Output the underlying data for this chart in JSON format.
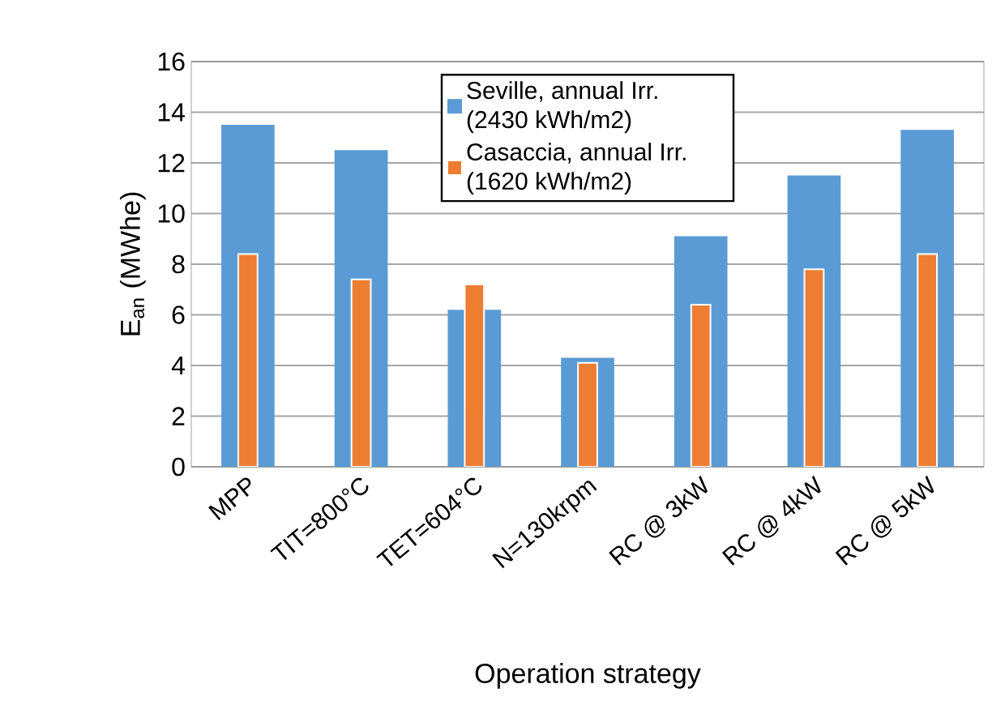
{
  "chart_data": {
    "type": "bar",
    "xlabel": "Operation strategy",
    "ylabel": "E$_{an}$ (MWhe)",
    "categories": [
      "MPP",
      "TIT=800°C",
      "TET=604°C",
      "N=130krpm",
      "RC @ 3kW",
      "RC @ 4kW",
      "RC @ 5kW"
    ],
    "series": [
      {
        "name": "Seville, annual Irr. (2430 kWh/m2)",
        "color": "#5b9bd5",
        "values": [
          13.5,
          12.5,
          6.2,
          4.3,
          9.1,
          11.5,
          13.3
        ]
      },
      {
        "name": "Casaccia, annual Irr. (1620 kWh/m2)",
        "color": "#ed7d31",
        "values": [
          8.4,
          7.4,
          7.2,
          4.1,
          6.4,
          7.8,
          8.4
        ]
      }
    ],
    "ylim": [
      0,
      16
    ],
    "yticks": [
      0,
      2,
      4,
      6,
      8,
      10,
      12,
      14,
      16
    ],
    "grid": "y",
    "legend": "top"
  }
}
